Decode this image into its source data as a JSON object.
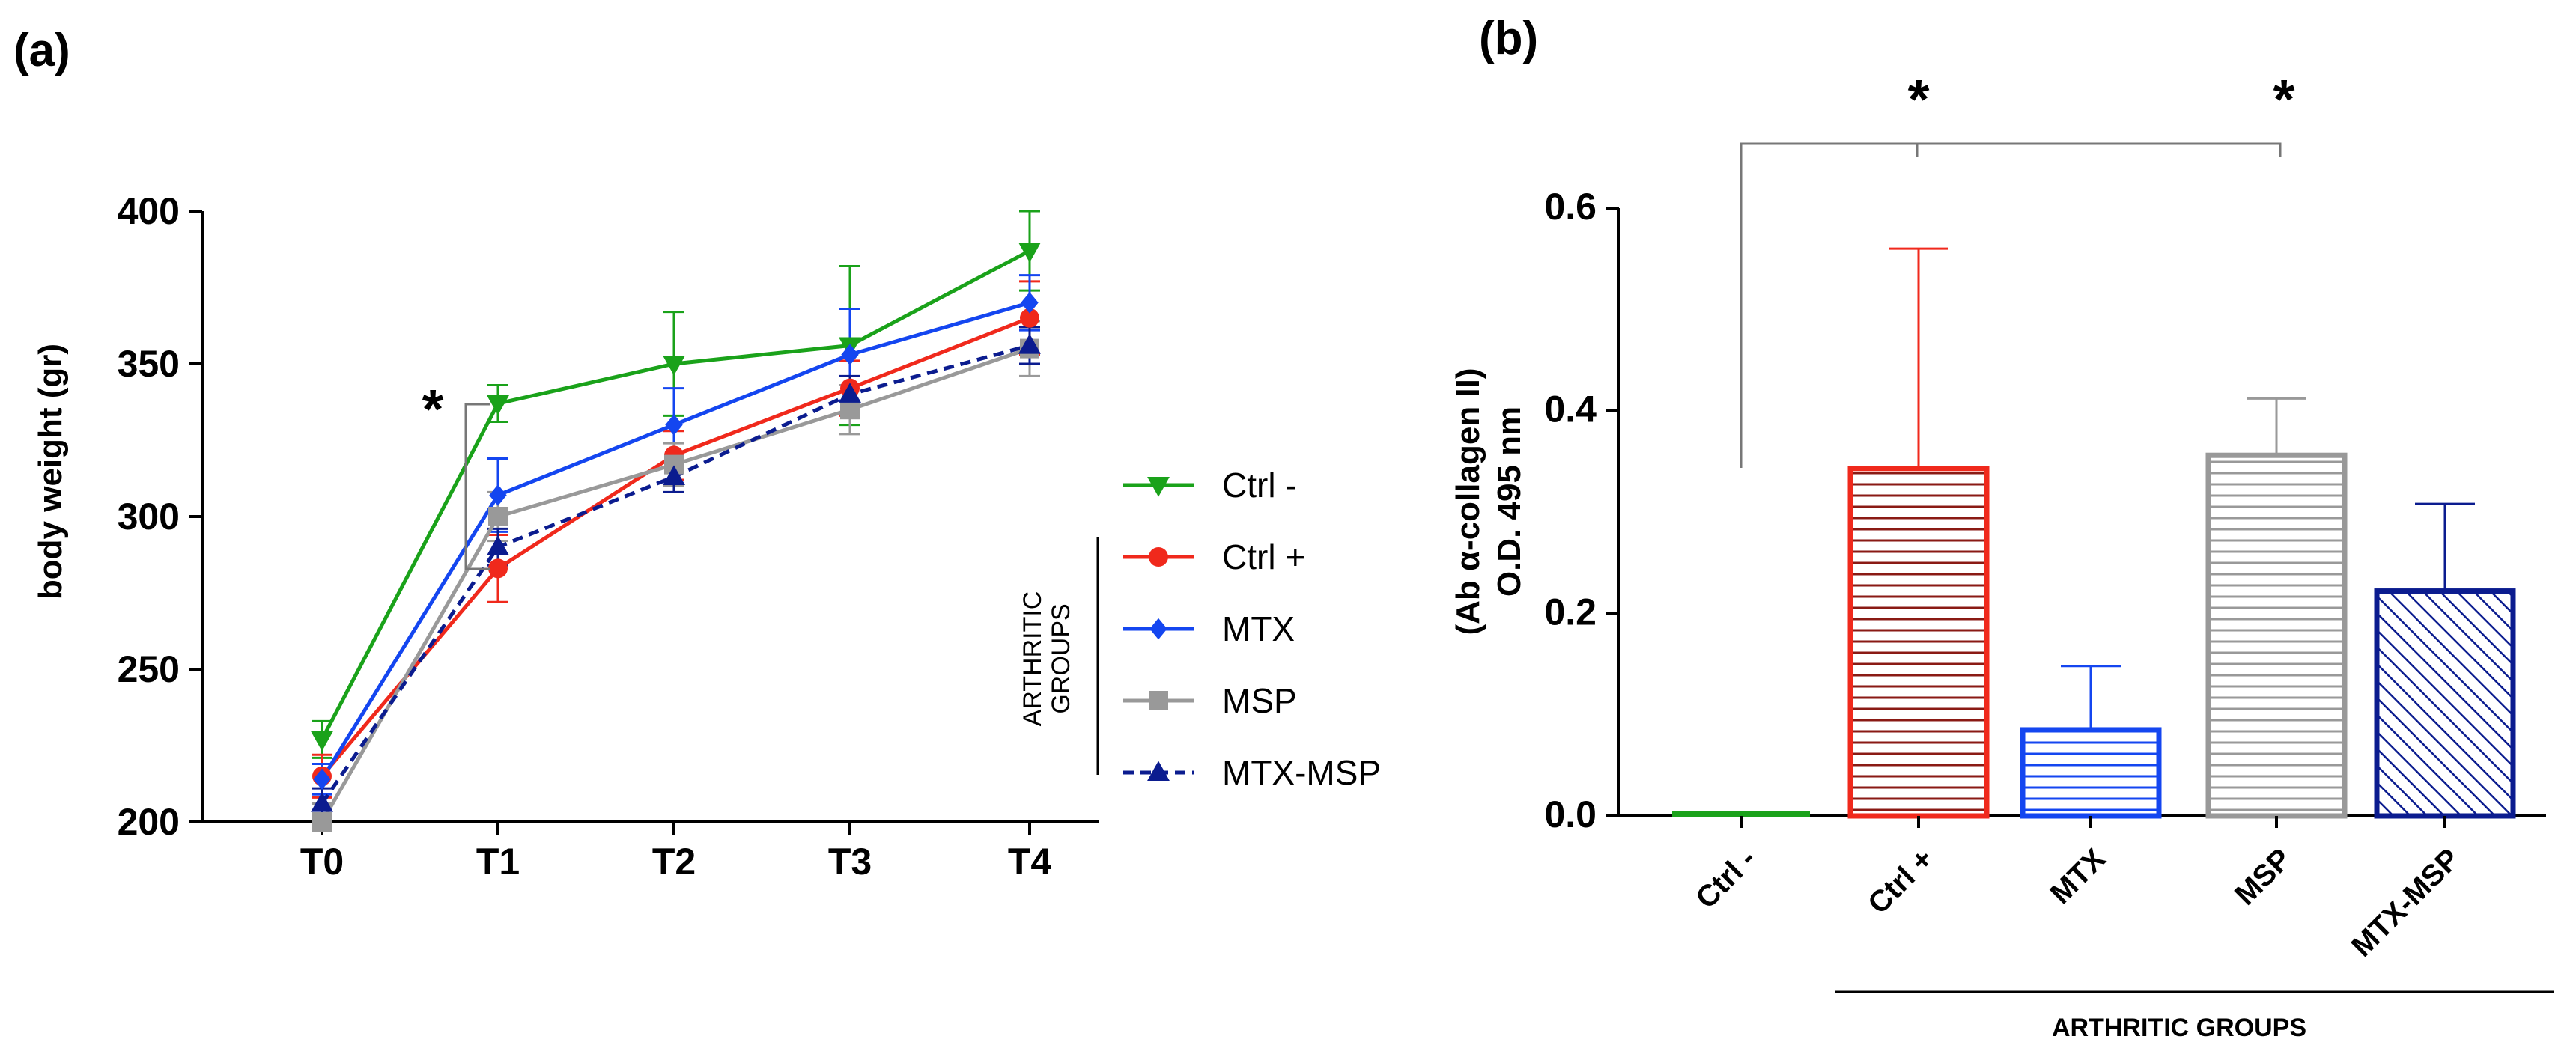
{
  "chart_data": [
    {
      "panel": "(a)",
      "type": "line",
      "ylabel": "body weight (gr)",
      "ylim": [
        200,
        400
      ],
      "yticks": [
        "200",
        "250",
        "300",
        "350",
        "400"
      ],
      "categories": [
        "T0",
        "T1",
        "T2",
        "T3",
        "T4"
      ],
      "significance_marker": "*",
      "legend_group_label": [
        "ARTHRITIC",
        "GROUPS"
      ],
      "series": [
        {
          "name": "Ctrl -",
          "color": "#1aa21a",
          "marker": "triangle-down",
          "dash": "solid",
          "values": [
            227,
            337,
            350,
            356,
            387
          ],
          "errors": [
            6,
            6,
            17,
            26,
            13
          ]
        },
        {
          "name": "Ctrl +",
          "color": "#f0291c",
          "marker": "circle",
          "dash": "solid",
          "values": [
            215,
            283,
            320,
            342,
            365
          ],
          "errors": [
            7,
            11,
            8,
            9,
            12
          ]
        },
        {
          "name": "MTX",
          "color": "#1446f0",
          "marker": "diamond",
          "dash": "solid",
          "values": [
            214,
            307,
            330,
            353,
            370
          ],
          "errors": [
            5,
            12,
            12,
            15,
            9
          ]
        },
        {
          "name": "MSP",
          "color": "#999999",
          "marker": "square",
          "dash": "solid",
          "values": [
            200,
            300,
            317,
            335,
            355
          ],
          "errors": [
            6,
            8,
            7,
            8,
            9
          ]
        },
        {
          "name": "MTX-MSP",
          "color": "#0b1c8f",
          "marker": "triangle-up",
          "dash": "dashed",
          "values": [
            206,
            290,
            313,
            340,
            356
          ],
          "errors": [
            5,
            6,
            5,
            6,
            6
          ]
        }
      ]
    },
    {
      "panel": "(b)",
      "type": "bar",
      "ylabel_line1": "(Ab α-collagen II)",
      "ylabel_line2": "O.D. 495 nm",
      "ylim": [
        0,
        0.6
      ],
      "yticks": [
        "0.0",
        "0.2",
        "0.4",
        "0.6"
      ],
      "categories": [
        "Ctrl -",
        "Ctrl +",
        "MTX",
        "MSP",
        "MTX-MSP"
      ],
      "values": [
        0.003,
        0.343,
        0.085,
        0.356,
        0.222
      ],
      "errors": [
        0,
        0.217,
        0.063,
        0.056,
        0.086
      ],
      "colors": [
        "#1aa21a",
        "#f0291c",
        "#1446f0",
        "#999999",
        "#0b1c8f"
      ],
      "patterns": [
        "solid",
        "horizontal",
        "horizontal",
        "horizontal",
        "diagonal"
      ],
      "significance_markers": [
        "*",
        "*"
      ],
      "group_label": "ARTHRITIC GROUPS"
    }
  ]
}
